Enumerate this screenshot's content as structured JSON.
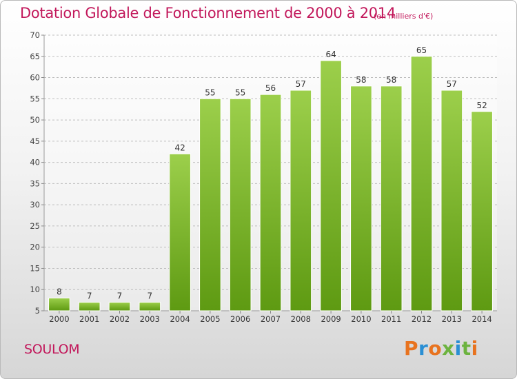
{
  "chart_data": {
    "type": "bar",
    "title": "Dotation Globale de Fonctionnement de 2000 à 2014",
    "subtitle": "(en milliers d'€)",
    "categories": [
      "2000",
      "2001",
      "2002",
      "2003",
      "2004",
      "2005",
      "2006",
      "2007",
      "2008",
      "2009",
      "2010",
      "2011",
      "2012",
      "2013",
      "2014"
    ],
    "values": [
      8,
      7,
      7,
      7,
      42,
      55,
      55,
      56,
      57,
      64,
      58,
      58,
      65,
      57,
      52
    ],
    "ylim": [
      5,
      70
    ],
    "yticks": [
      5,
      10,
      15,
      20,
      25,
      30,
      35,
      40,
      45,
      50,
      55,
      60,
      65,
      70
    ],
    "grid": true,
    "bar_color_top": "#9ccf4b",
    "bar_color_bottom": "#5e9a12"
  },
  "footer": {
    "place": "SOULOM",
    "logo_text": "Proxiti"
  },
  "colors": {
    "title": "#c2185b",
    "logo_letters": [
      "#e8731f",
      "#2a8fd4",
      "#e8731f",
      "#6cb33f",
      "#2a8fd4",
      "#6cb33f",
      "#e8731f"
    ]
  }
}
